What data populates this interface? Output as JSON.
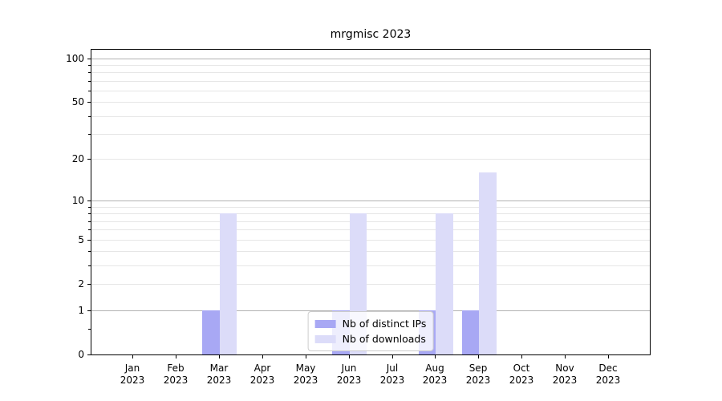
{
  "chart_data": {
    "type": "bar",
    "title": "mrgmisc 2023",
    "y_scale": "log1p",
    "categories": [
      "Jan 2023",
      "Feb 2023",
      "Mar 2023",
      "Apr 2023",
      "May 2023",
      "Jun 2023",
      "Jul 2023",
      "Aug 2023",
      "Sep 2023",
      "Oct 2023",
      "Nov 2023",
      "Dec 2023"
    ],
    "series": [
      {
        "name": "Nb of distinct IPs",
        "color": "#a8a8f4",
        "values": [
          0,
          0,
          1,
          0,
          0,
          1,
          0,
          1,
          1,
          0,
          0,
          0
        ]
      },
      {
        "name": "Nb of downloads",
        "color": "#dcdcf9",
        "values": [
          0,
          0,
          8,
          0,
          0,
          8,
          0,
          8,
          16,
          0,
          0,
          0
        ]
      }
    ],
    "y_tick_labels": [
      100,
      50,
      20,
      10,
      5,
      2,
      1,
      0
    ],
    "major_gridlines": [
      100,
      10,
      1
    ],
    "minor_gridlines": [
      2,
      3,
      4,
      5,
      6,
      7,
      8,
      9,
      20,
      30,
      40,
      50,
      60,
      70,
      80,
      90
    ],
    "minor_ticks": [
      0.5,
      2,
      3,
      4,
      5,
      6,
      7,
      8,
      9,
      20,
      30,
      40,
      50,
      60,
      70,
      80,
      90
    ],
    "ylim": [
      0,
      115
    ],
    "grid": true,
    "legend_position": "lower center",
    "colors": {
      "axis": "#000000",
      "major_grid": "#b2b2b2",
      "minor_grid": "#e6e6e6",
      "background": "#ffffff",
      "legend_border": "#cccccc",
      "legend_bg": "rgba(255,255,255,0.8)"
    }
  }
}
